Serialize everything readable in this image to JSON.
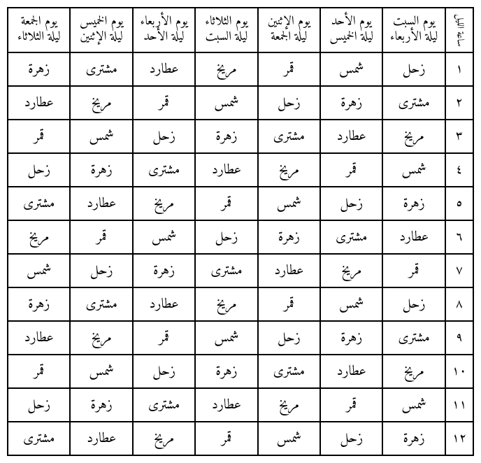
{
  "header_num": "ساعة الليل",
  "headers": [
    {
      "line1": "يوم السبت",
      "line2": "ليلة الأربعاء"
    },
    {
      "line1": "يوم الأحد",
      "line2": "ليلة الخميس"
    },
    {
      "line1": "يوم الإثنين",
      "line2": "ليلة الجمعة"
    },
    {
      "line1": "يوم الثلاثاء",
      "line2": "ليلة السبت"
    },
    {
      "line1": "يوم الأربعاء",
      "line2": "ليلة الأحد"
    },
    {
      "line1": "يوم الخميس",
      "line2": "ليلة الإثنين"
    },
    {
      "line1": "يوم الجمعة",
      "line2": "ليلة الثلاثاء"
    }
  ],
  "row_numbers": [
    "١",
    "٢",
    "٣",
    "٤",
    "٥",
    "٦",
    "٧",
    "٨",
    "٩",
    "١٠",
    "١١",
    "١٢"
  ],
  "rows": [
    [
      "زحل",
      "شمس",
      "قمر",
      "مريخ",
      "عطارد",
      "مشترى",
      "زهرة"
    ],
    [
      "مشترى",
      "زهرة",
      "زحل",
      "شمس",
      "قمر",
      "مريخ",
      "عطارد"
    ],
    [
      "مريخ",
      "عطارد",
      "مشترى",
      "زهرة",
      "زحل",
      "شمس",
      "قمر"
    ],
    [
      "شمس",
      "قمر",
      "مريخ",
      "عطارد",
      "مشترى",
      "زهرة",
      "زحل"
    ],
    [
      "زهرة",
      "زحل",
      "شمس",
      "قمر",
      "مريخ",
      "عطارد",
      "مشترى"
    ],
    [
      "عطارد",
      "مشترى",
      "زهرة",
      "زحل",
      "شمس",
      "قمر",
      "مريخ"
    ],
    [
      "قمر",
      "مريخ",
      "عطارد",
      "مشترى",
      "زهرة",
      "زحل",
      "شمس"
    ],
    [
      "زحل",
      "شمس",
      "قمر",
      "مريخ",
      "عطارد",
      "مشترى",
      "زهرة"
    ],
    [
      "مشترى",
      "زهرة",
      "زحل",
      "شمس",
      "قمر",
      "مريخ",
      "عطارد"
    ],
    [
      "مريخ",
      "عطارد",
      "مشترى",
      "زهرة",
      "زحل",
      "شمس",
      "قمر"
    ],
    [
      "شمس",
      "قمر",
      "مريخ",
      "عطارد",
      "مشترى",
      "زهرة",
      "زحل"
    ],
    [
      "زهرة",
      "زحل",
      "شمس",
      "قمر",
      "مريخ",
      "عطارد",
      "مشترى"
    ]
  ]
}
